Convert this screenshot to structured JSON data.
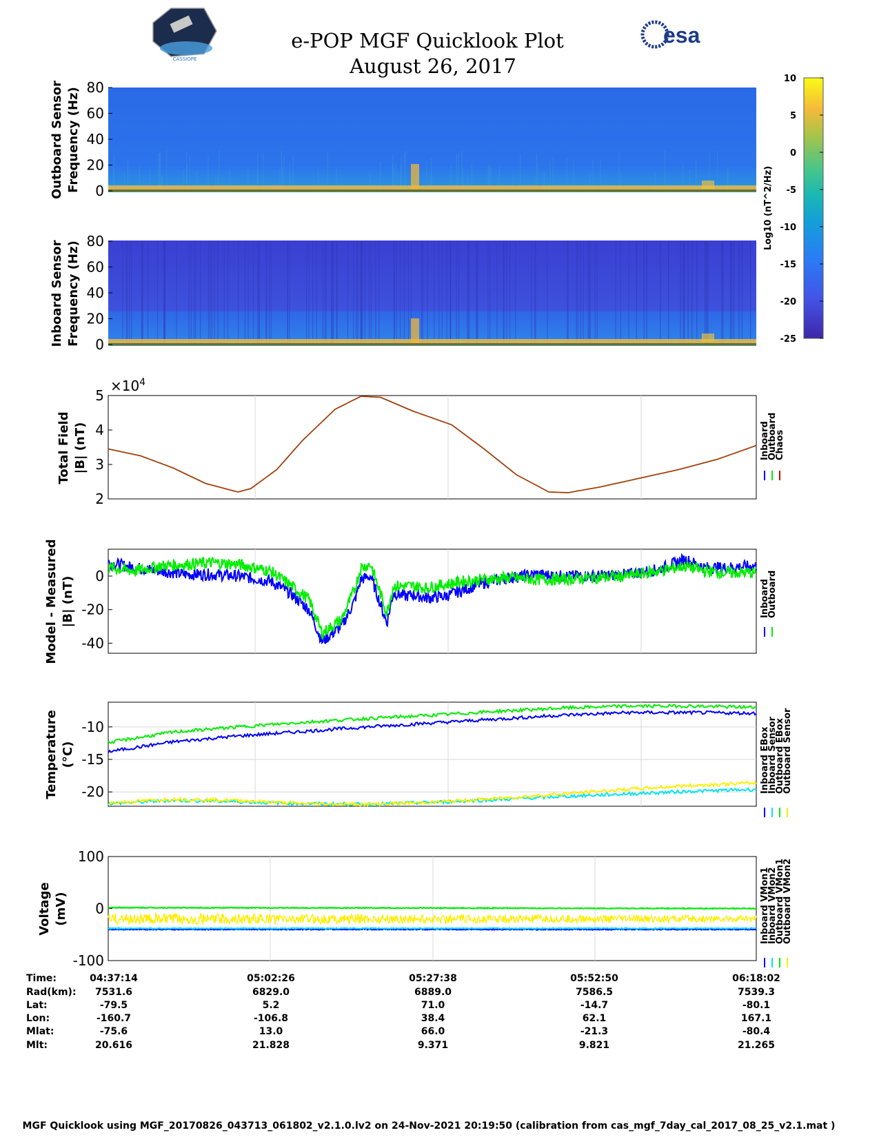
{
  "header": {
    "title": "e-POP MGF Quicklook Plot",
    "date": "August 26, 2017",
    "left_logo_text": "CASSIOPE",
    "right_logo_text": "esa"
  },
  "colors": {
    "blue": "#0000ff",
    "green": "#00ee00",
    "red": "#d00000",
    "brown": "#a0400a",
    "cyan": "#00e5ee",
    "yellow": "#ffee00",
    "spec_bg": "#2c6fe8",
    "spec_bg2": "#3847d8"
  },
  "chart_data": [
    {
      "id": "spec-outboard",
      "type": "heatmap",
      "ylabel": [
        "Outboard Sensor",
        "Frequency (Hz)"
      ],
      "ylim": [
        0,
        80
      ],
      "yticks": [
        0,
        20,
        40,
        60,
        80
      ]
    },
    {
      "id": "spec-inboard",
      "type": "heatmap",
      "ylabel": [
        "Inboard Sensor",
        "Frequency (Hz)"
      ],
      "ylim": [
        0,
        80
      ],
      "yticks": [
        0,
        20,
        40,
        60,
        80
      ]
    },
    {
      "id": "colorbar",
      "type": "colorbar",
      "label": "Log10 (nT^2/Hz)",
      "range": [
        -25,
        10
      ],
      "ticks": [
        10,
        5,
        0,
        -5,
        -10,
        -15,
        -20,
        -25
      ]
    },
    {
      "id": "total-field",
      "type": "line",
      "ylabel": [
        "Total Field",
        "|B| (nT)"
      ],
      "ylim": [
        2,
        5
      ],
      "yticks": [
        2,
        3,
        4,
        5
      ],
      "exponent_label": "×10",
      "exponent": "4",
      "x": [
        0,
        0.05,
        0.1,
        0.15,
        0.2,
        0.22,
        0.26,
        0.3,
        0.35,
        0.39,
        0.42,
        0.47,
        0.53,
        0.58,
        0.63,
        0.68,
        0.71,
        0.76,
        0.82,
        0.88,
        0.94,
        1.0
      ],
      "values": [
        3.45,
        3.25,
        2.9,
        2.45,
        2.2,
        2.3,
        2.85,
        3.7,
        4.6,
        4.98,
        4.95,
        4.55,
        4.15,
        3.45,
        2.7,
        2.2,
        2.18,
        2.35,
        2.6,
        2.85,
        3.15,
        3.55
      ],
      "legend": [
        "Inboard",
        "Outboard",
        "Chaos"
      ]
    },
    {
      "id": "model-measured",
      "type": "line",
      "ylabel": [
        "Model - Measured",
        "|B| (nT)"
      ],
      "ylim": [
        -46,
        16
      ],
      "yticks": [
        -40,
        -20,
        0
      ],
      "x": [
        0,
        0.04,
        0.08,
        0.12,
        0.16,
        0.2,
        0.25,
        0.28,
        0.31,
        0.33,
        0.36,
        0.38,
        0.39,
        0.405,
        0.43,
        0.44,
        0.46,
        0.47,
        0.49,
        0.52,
        0.55,
        0.58,
        0.62,
        0.66,
        0.7,
        0.75,
        0.8,
        0.85,
        0.89,
        0.92,
        0.95,
        1.0
      ],
      "series": [
        {
          "name": "Inboard",
          "values": [
            8,
            5,
            3,
            1,
            1,
            0,
            -3,
            -10,
            -20,
            -39,
            -30,
            -15,
            -2,
            0,
            -28,
            -10,
            -12,
            -11,
            -13,
            -12,
            -8,
            -4,
            -1,
            1,
            0,
            0,
            1,
            4,
            10,
            5,
            5,
            6
          ]
        },
        {
          "name": "Outboard",
          "values": [
            5,
            3,
            6,
            7,
            8,
            7,
            3,
            -5,
            -14,
            -34,
            -26,
            -8,
            5,
            7,
            -22,
            -6,
            -6,
            -6,
            -7,
            -5,
            -3,
            -2,
            -1,
            -2,
            -2,
            -1,
            0,
            3,
            6,
            3,
            2,
            2
          ]
        }
      ],
      "legend": [
        "Inboard",
        "Outboard"
      ]
    },
    {
      "id": "temperature",
      "type": "line",
      "ylabel": [
        "Temperature",
        "(°C)"
      ],
      "ylim": [
        -22.2,
        -6.2
      ],
      "yticks": [
        -20,
        -15,
        -10
      ],
      "x": [
        0,
        0.1,
        0.2,
        0.3,
        0.4,
        0.5,
        0.6,
        0.7,
        0.8,
        0.9,
        1.0
      ],
      "series": [
        {
          "name": "Inboard EBox",
          "values": [
            -13.8,
            -12.3,
            -11.4,
            -10.7,
            -10.0,
            -9.4,
            -8.8,
            -8.2,
            -7.8,
            -7.8,
            -7.9
          ]
        },
        {
          "name": "Inboard Sensor",
          "values": [
            -21.8,
            -21.3,
            -21.5,
            -21.8,
            -21.9,
            -21.6,
            -21.2,
            -20.7,
            -20.3,
            -19.9,
            -19.6
          ]
        },
        {
          "name": "Outboard EBox",
          "values": [
            -12.4,
            -10.8,
            -10.0,
            -9.3,
            -8.7,
            -8.2,
            -7.6,
            -7.1,
            -6.8,
            -6.8,
            -7.0
          ]
        },
        {
          "name": "Outboard Sensor",
          "values": [
            -21.7,
            -21.1,
            -21.3,
            -21.8,
            -21.9,
            -21.6,
            -21.0,
            -20.3,
            -19.6,
            -19.0,
            -18.6
          ]
        }
      ],
      "legend": [
        "Inboard EBox",
        "Inboard Sensor",
        "Outboard EBox",
        "Outboard Sensor"
      ]
    },
    {
      "id": "voltage",
      "type": "line",
      "ylabel": [
        "Voltage",
        "(mV)"
      ],
      "ylim": [
        -100,
        100
      ],
      "yticks": [
        -100,
        0,
        100
      ],
      "series": [
        {
          "name": "Inboard VMon1",
          "values": [
            -40,
            -40
          ]
        },
        {
          "name": "Inboard VMon2",
          "values": [
            -38,
            -38
          ]
        },
        {
          "name": "Outboard VMon1",
          "values": [
            2,
            0
          ]
        },
        {
          "name": "Outboard VMon2",
          "values": [
            -20,
            -20
          ]
        }
      ],
      "legend": [
        "Inboard VMon1",
        "Inboard VMon2",
        "Outboard VMon1",
        "Outboard VMon2"
      ]
    }
  ],
  "ephemeris": {
    "labels": [
      "Time:",
      "Rad(km):",
      "Lat:",
      "Lon:",
      "Mlat:",
      "Mlt:"
    ],
    "columns": [
      [
        "04:37:14",
        "7531.6",
        "-79.5",
        "-160.7",
        "-75.6",
        "20.616"
      ],
      [
        "05:02:26",
        "6829.0",
        "5.2",
        "-106.8",
        "13.0",
        "21.828"
      ],
      [
        "05:27:38",
        "6889.0",
        "71.0",
        "38.4",
        "66.0",
        "9.371"
      ],
      [
        "05:52:50",
        "7586.5",
        "-14.7",
        "62.1",
        "-21.3",
        "9.821"
      ],
      [
        "06:18:02",
        "7539.3",
        "-80.1",
        "167.1",
        "-80.4",
        "21.265"
      ]
    ]
  },
  "footer": "MGF Quicklook using MGF_20170826_043713_061802_v2.1.0.lv2 on 24-Nov-2021 20:19:50 (calibration from cas_mgf_7day_cal_2017_08_25_v2.1.mat )"
}
